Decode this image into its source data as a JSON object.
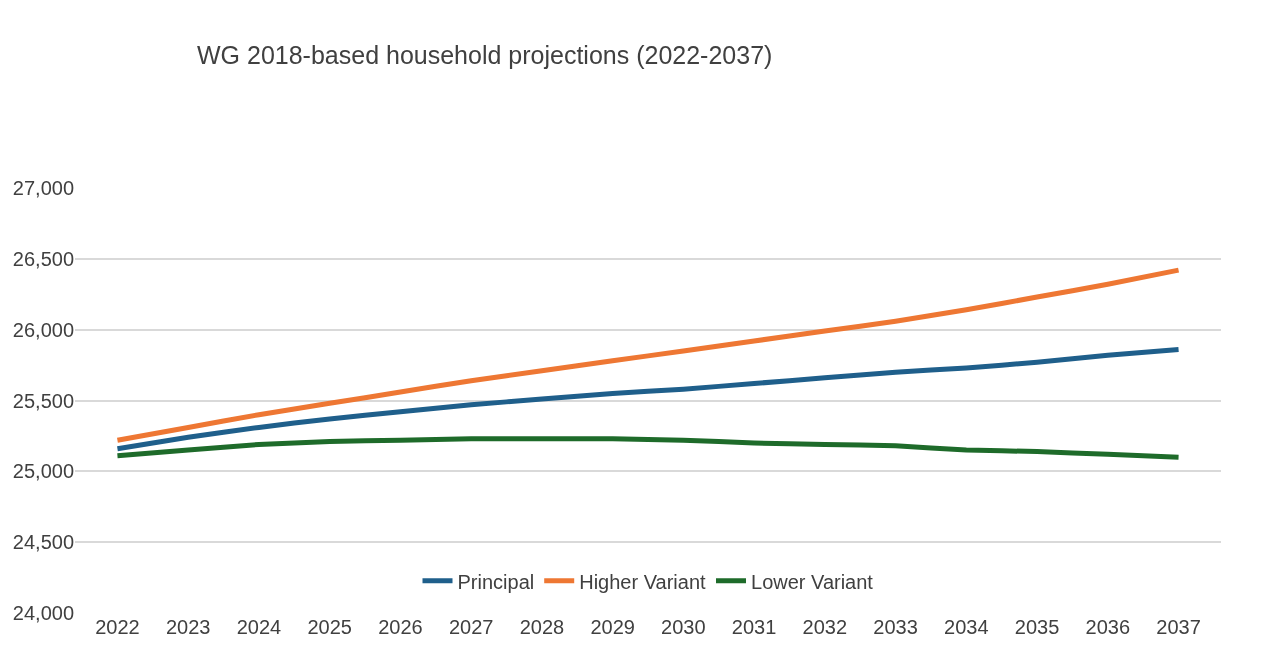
{
  "chart_data": {
    "type": "line",
    "title": "WG 2018-based household projections (2022-2037)",
    "categories": [
      "2022",
      "2023",
      "2024",
      "2025",
      "2026",
      "2027",
      "2028",
      "2029",
      "2030",
      "2031",
      "2032",
      "2033",
      "2034",
      "2035",
      "2036",
      "2037"
    ],
    "series": [
      {
        "name": "Principal",
        "color": "#1f5f8b",
        "values": [
          25160,
          25240,
          25310,
          25370,
          25420,
          25470,
          25510,
          25550,
          25580,
          25620,
          25660,
          25700,
          25730,
          25770,
          25820,
          25860
        ]
      },
      {
        "name": "Higher Variant",
        "color": "#ee7733",
        "values": [
          25220,
          25310,
          25400,
          25480,
          25560,
          25640,
          25710,
          25780,
          25850,
          25920,
          25990,
          26060,
          26140,
          26230,
          26320,
          26420
        ]
      },
      {
        "name": "Lower Variant",
        "color": "#1e6b2a",
        "values": [
          25110,
          25150,
          25190,
          25210,
          25220,
          25230,
          25230,
          25230,
          25220,
          25200,
          25190,
          25180,
          25150,
          25140,
          25120,
          25100
        ]
      }
    ],
    "ylim": [
      24000,
      27000
    ],
    "yticks": [
      {
        "value": 24000,
        "label": "24,000"
      },
      {
        "value": 24500,
        "label": "24,500"
      },
      {
        "value": 25000,
        "label": "25,000"
      },
      {
        "value": 25500,
        "label": "25,500"
      },
      {
        "value": 26000,
        "label": "26,000"
      },
      {
        "value": 26500,
        "label": "26,500"
      },
      {
        "value": 27000,
        "label": "27,000"
      }
    ],
    "grid": "y",
    "legend": "bottom",
    "marker": "none",
    "line_style": "solid"
  }
}
